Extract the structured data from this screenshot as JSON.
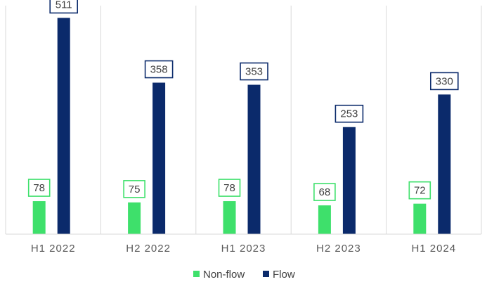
{
  "chart_data": {
    "type": "bar",
    "categories": [
      "H1  2022",
      "H2  2022",
      "H1  2023",
      "H2  2023",
      "H1  2024"
    ],
    "series": [
      {
        "name": "Non-flow",
        "color": "#3ee06b",
        "values": [
          78,
          75,
          78,
          68,
          72
        ]
      },
      {
        "name": "Flow",
        "color": "#0b2a6b",
        "values": [
          511,
          358,
          353,
          253,
          330
        ]
      }
    ],
    "ylim": [
      0,
      540
    ],
    "grid": "vertical category separators",
    "legend_position": "bottom"
  }
}
